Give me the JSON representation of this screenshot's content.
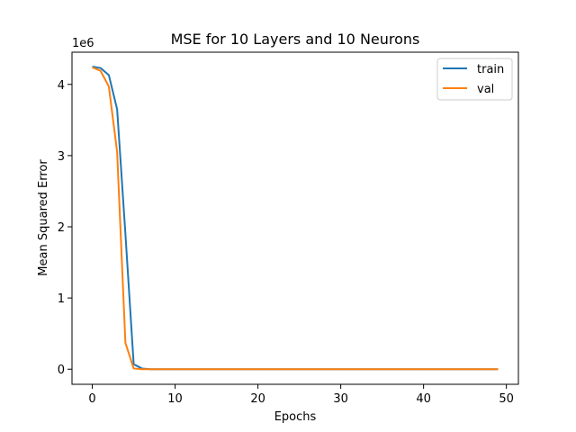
{
  "chart_data": {
    "type": "line",
    "title": "MSE for 10 Layers and 10 Neurons",
    "xlabel": "Epochs",
    "ylabel": "Mean Squared Error",
    "y_offset_label": "1e6",
    "xlim": [
      -2.45,
      51.45
    ],
    "ylim": [
      -0.212,
      4.452
    ],
    "x_ticks": [
      0,
      10,
      20,
      30,
      40,
      50
    ],
    "y_ticks": [
      0,
      1,
      2,
      3,
      4
    ],
    "grid": false,
    "legend_position": "top-right",
    "series": [
      {
        "name": "train",
        "color": "#1f77b4",
        "x": [
          0,
          1,
          2,
          3,
          4,
          5,
          6,
          7,
          8,
          9,
          10,
          11,
          12,
          13,
          14,
          15,
          16,
          17,
          18,
          19,
          20,
          21,
          22,
          23,
          24,
          25,
          26,
          27,
          28,
          29,
          30,
          31,
          32,
          33,
          34,
          35,
          36,
          37,
          38,
          39,
          40,
          41,
          42,
          43,
          44,
          45,
          46,
          47,
          48,
          49
        ],
        "y": [
          4.25,
          4.23,
          4.13,
          3.65,
          1.9,
          0.07,
          0.01,
          0,
          0,
          0,
          0,
          0,
          0,
          0,
          0,
          0,
          0,
          0,
          0,
          0,
          0,
          0,
          0,
          0,
          0,
          0,
          0,
          0,
          0,
          0,
          0,
          0,
          0,
          0,
          0,
          0,
          0,
          0,
          0,
          0,
          0,
          0,
          0,
          0,
          0,
          0,
          0,
          0,
          0,
          0
        ]
      },
      {
        "name": "val",
        "color": "#ff7f0e",
        "x": [
          0,
          1,
          2,
          3,
          4,
          5,
          6,
          7,
          8,
          9,
          10,
          11,
          12,
          13,
          14,
          15,
          16,
          17,
          18,
          19,
          20,
          21,
          22,
          23,
          24,
          25,
          26,
          27,
          28,
          29,
          30,
          31,
          32,
          33,
          34,
          35,
          36,
          37,
          38,
          39,
          40,
          41,
          42,
          43,
          44,
          45,
          46,
          47,
          48,
          49
        ],
        "y": [
          4.24,
          4.19,
          3.97,
          3.05,
          0.37,
          0.01,
          0,
          0,
          0,
          0,
          0,
          0,
          0,
          0,
          0,
          0,
          0,
          0,
          0,
          0,
          0,
          0,
          0,
          0,
          0,
          0,
          0,
          0,
          0,
          0,
          0,
          0,
          0,
          0,
          0,
          0,
          0,
          0,
          0,
          0,
          0,
          0,
          0,
          0,
          0,
          0,
          0,
          0,
          0,
          0
        ]
      }
    ]
  }
}
